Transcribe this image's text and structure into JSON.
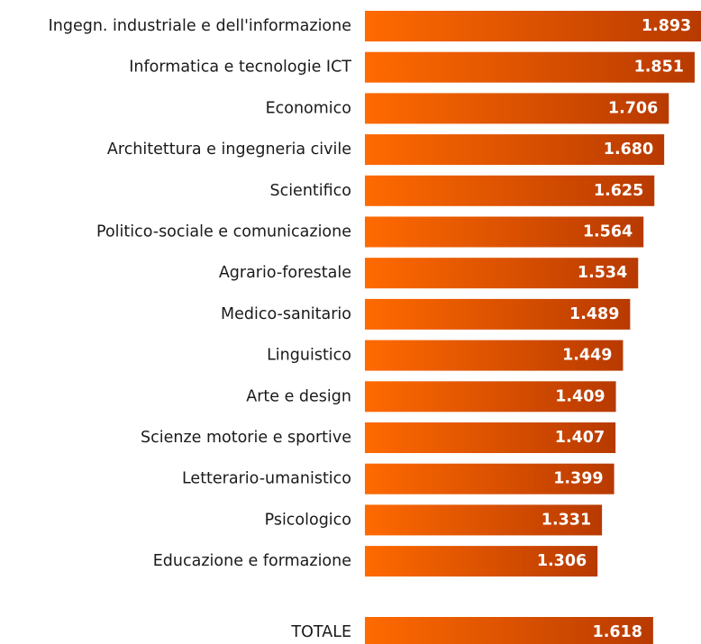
{
  "chart_data": {
    "type": "bar",
    "orientation": "horizontal",
    "categories": [
      "Ingegn. industriale e dell'informazione",
      "Informatica e tecnologie ICT",
      "Economico",
      "Architettura e ingegneria civile",
      "Scientifico",
      "Politico-sociale e comunicazione",
      "Agrario-forestale",
      "Medico-sanitario",
      "Linguistico",
      "Arte e design",
      "Scienze motorie e sportive",
      "Letterario-umanistico",
      "Psicologico",
      "Educazione e formazione"
    ],
    "values": [
      1893,
      1851,
      1706,
      1680,
      1625,
      1564,
      1534,
      1489,
      1449,
      1409,
      1407,
      1399,
      1331,
      1306
    ],
    "value_labels": [
      "1.893",
      "1.851",
      "1.706",
      "1.680",
      "1.625",
      "1.564",
      "1.534",
      "1.489",
      "1.449",
      "1.409",
      "1.407",
      "1.399",
      "1.331",
      "1.306"
    ],
    "total": {
      "label": "TOTALE",
      "value": 1618,
      "value_label": "1.618"
    },
    "title": "",
    "xlabel": "",
    "ylabel": "",
    "grid": false,
    "legend": "none",
    "colors": {
      "bar_start": "#ff6a00",
      "bar_end": "#b83a00",
      "label": "#1a1a1a",
      "value_text": "#ffffff"
    }
  }
}
